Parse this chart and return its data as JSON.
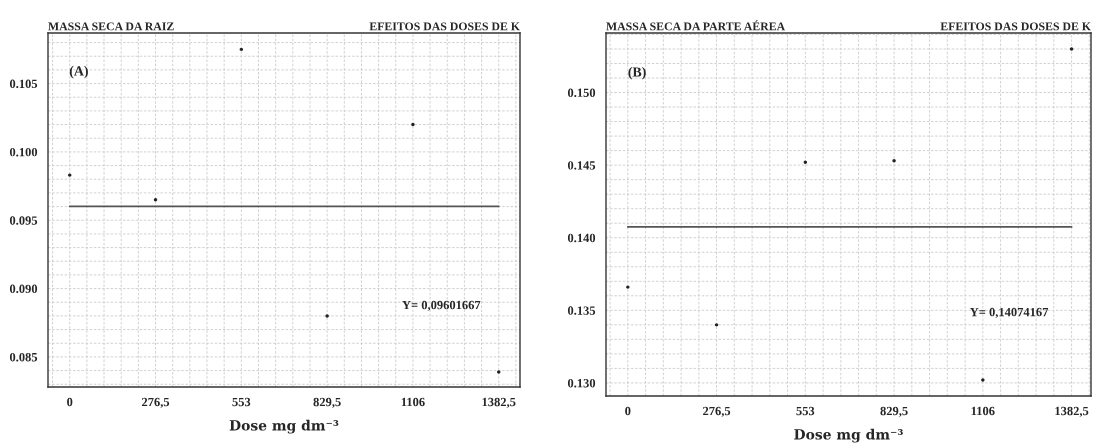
{
  "chart_data": [
    {
      "type": "scatter",
      "title": "MASSA SECA DA RAIZ",
      "subtitle": "EFEITOS DAS DOSES DE K",
      "xlabel": "Dose mg dm⁻³",
      "annotations": [
        "(A)",
        "Y= 0,09601667"
      ],
      "series": [
        {
          "color": "#222222",
          "marker": "circle",
          "x": [
            0,
            276.5,
            553,
            829.5,
            1106,
            1382.5
          ],
          "values": [
            0.0983,
            0.0965,
            0.1075,
            0.088,
            0.102,
            0.0839
          ]
        },
        {
          "type": "line",
          "color": "#555555",
          "line_style": "solid",
          "x": [
            0,
            1382.5
          ],
          "values": [
            0.09601667,
            0.09601667
          ]
        }
      ],
      "xlim": [
        -70,
        1451
      ],
      "ylim": [
        0.0828,
        0.1087
      ],
      "xticks": [
        0,
        {
          "value": 276.5,
          "label": "276,5"
        },
        553,
        {
          "value": 829.5,
          "label": "829,5"
        },
        1106,
        {
          "value": 1382.5,
          "label": "1382,5"
        }
      ],
      "yticks": [
        {
          "value": 0.085,
          "label": "0.085"
        },
        {
          "value": 0.09,
          "label": "0.090"
        },
        {
          "value": 0.095,
          "label": "0.095"
        },
        {
          "value": 0.1,
          "label": "0.100"
        },
        {
          "value": 0.105,
          "label": "0.105"
        }
      ],
      "grid": true,
      "legend": false
    },
    {
      "type": "scatter",
      "title": "MASSA SECA DA PARTE AÉREA",
      "subtitle": "EFEITOS DAS DOSES DE K",
      "xlabel": "Dose mg dm⁻³",
      "annotations": [
        "(B)",
        "Y= 0,14074167"
      ],
      "series": [
        {
          "color": "#222222",
          "marker": "circle",
          "x": [
            0,
            276.5,
            553,
            829.5,
            1106,
            1382.5
          ],
          "values": [
            0.1366,
            0.134,
            0.1452,
            0.1453,
            0.1302,
            0.153
          ]
        },
        {
          "type": "line",
          "color": "#555555",
          "line_style": "solid",
          "x": [
            0,
            1382.5
          ],
          "values": [
            0.14074167,
            0.14074167
          ]
        }
      ],
      "xlim": [
        -68,
        1443
      ],
      "ylim": [
        0.1291,
        0.1541
      ],
      "xticks": [
        0,
        {
          "value": 276.5,
          "label": "276,5"
        },
        553,
        {
          "value": 829.5,
          "label": "829,5"
        },
        1106,
        {
          "value": 1382.5,
          "label": "1382,5"
        }
      ],
      "yticks": [
        {
          "value": 0.13,
          "label": "0.130"
        },
        {
          "value": 0.135,
          "label": "0.135"
        },
        {
          "value": 0.14,
          "label": "0.140"
        },
        {
          "value": 0.145,
          "label": "0.145"
        },
        {
          "value": 0.15,
          "label": "0.150"
        }
      ],
      "grid": true,
      "legend": false
    }
  ]
}
